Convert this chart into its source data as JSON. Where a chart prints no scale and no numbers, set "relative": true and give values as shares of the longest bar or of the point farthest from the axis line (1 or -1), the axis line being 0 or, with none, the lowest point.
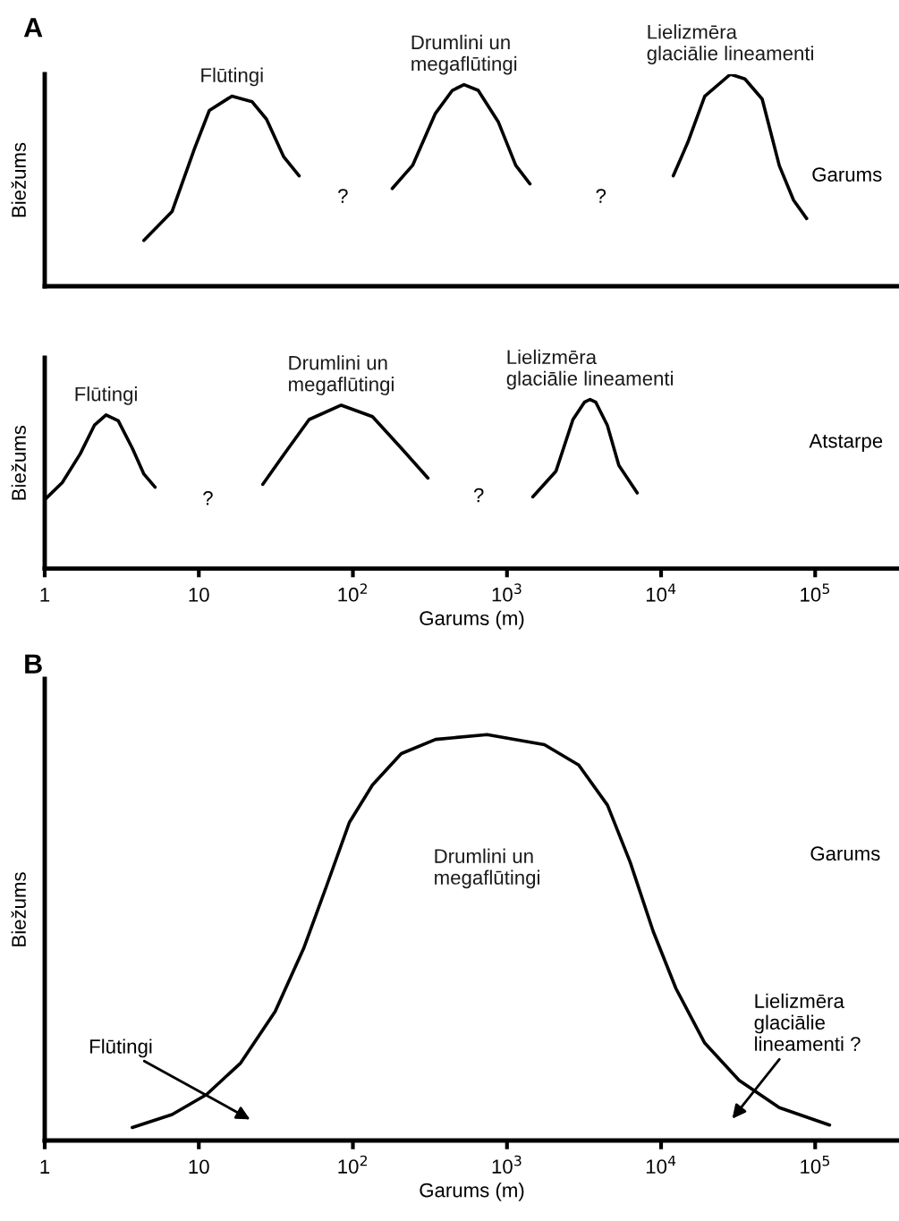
{
  "chart_data": [
    {
      "type": "line",
      "title": "A",
      "ylabel": "Biežums",
      "relative": true,
      "log": "x",
      "xlim": [
        1,
        350000
      ],
      "line_style": "solid",
      "series": [
        {
          "name": "Flūtingi",
          "color": "#000000",
          "x": [
            4.4,
            6.7,
            9.4,
            11.7,
            16.4,
            22.2,
            27.5,
            35.6,
            44.8
          ],
          "values": [
            0.216,
            0.352,
            0.651,
            0.829,
            0.897,
            0.87,
            0.788,
            0.61,
            0.521
          ]
        },
        {
          "name": "Drumlini un\nmegaflūtingi",
          "color": "#000000",
          "x": [
            180,
            244,
            343,
            442,
            526,
            650,
            880,
            1140,
            1410
          ],
          "values": [
            0.461,
            0.57,
            0.815,
            0.924,
            0.951,
            0.924,
            0.774,
            0.57,
            0.483
          ]
        },
        {
          "name": "Lielizmēra\nglaciālie lineamenti",
          "color": "#000000",
          "x": [
            12000,
            14900,
            19200,
            28200,
            35000,
            45300,
            58500,
            72400,
            88100
          ],
          "values": [
            0.521,
            0.678,
            0.896,
            1.0,
            0.978,
            0.883,
            0.569,
            0.406,
            0.319
          ]
        }
      ],
      "annotations": [
        "?",
        "?",
        "Garums"
      ]
    },
    {
      "type": "line",
      "xlabel": "Garums (m)",
      "ylabel": "Biežums",
      "relative": true,
      "log": "x",
      "xlim": [
        1,
        350000
      ],
      "line_style": "solid",
      "xticks": [
        1,
        10,
        {
          "value": 100,
          "label": "10$^{2}$"
        },
        {
          "value": 1000,
          "label": "10$^{3}$"
        },
        {
          "value": 10000,
          "label": "10$^{4}$"
        },
        {
          "value": 100000,
          "label": "10$^{5}$"
        }
      ],
      "series": [
        {
          "name": "Flūtingi",
          "color": "#000000",
          "x": [
            1.0,
            1.3,
            1.7,
            2.1,
            2.5,
            3.0,
            3.7,
            4.4,
            5.2
          ],
          "values": [
            0.407,
            0.508,
            0.678,
            0.847,
            0.908,
            0.874,
            0.712,
            0.559,
            0.481
          ]
        },
        {
          "name": "Drumlini un\nmegaflūtingi",
          "color": "#000000",
          "x": [
            26,
            37,
            52,
            84,
            134,
            206,
            307
          ],
          "values": [
            0.498,
            0.695,
            0.881,
            0.966,
            0.898,
            0.712,
            0.535
          ]
        },
        {
          "name": "Lielizmēra\nglaciālie lineamenti",
          "color": "#000000",
          "x": [
            1470,
            2080,
            2680,
            3180,
            3460,
            3770,
            4480,
            5320,
            7000
          ],
          "values": [
            0.424,
            0.576,
            0.881,
            0.983,
            1.0,
            0.983,
            0.847,
            0.61,
            0.447
          ]
        }
      ],
      "annotations": [
        "?",
        "?",
        "Atstarpe"
      ]
    },
    {
      "type": "line",
      "title": "B",
      "xlabel": "Garums (m)",
      "ylabel": "Biežums",
      "relative": true,
      "log": "x",
      "xlim": [
        1,
        350000
      ],
      "line_style": "solid",
      "xticks": [
        1,
        10,
        {
          "value": 100,
          "label": "10$^{2}$"
        },
        {
          "value": 1000,
          "label": "10$^{3}$"
        },
        {
          "value": 10000,
          "label": "10$^{4}$"
        },
        {
          "value": 100000,
          "label": "10$^{5}$"
        }
      ],
      "series": [
        {
          "name": "Drumlini un\nmegaflūtingi",
          "color": "#000000",
          "x": [
            3.7,
            6.7,
            11.2,
            18.7,
            31.3,
            47.9,
            67.6,
            95,
            134,
            206,
            344,
            743,
            1750,
            2920,
            4490,
            6310,
            8890,
            12500,
            19200,
            32100,
            58500,
            124000
          ],
          "values": [
            0.032,
            0.064,
            0.113,
            0.191,
            0.318,
            0.473,
            0.628,
            0.784,
            0.876,
            0.953,
            0.988,
            1.0,
            0.975,
            0.925,
            0.826,
            0.685,
            0.515,
            0.374,
            0.24,
            0.148,
            0.081,
            0.038
          ]
        }
      ],
      "annotations": [
        "Flūtingi",
        "Lielizmēra\nglaciālie\nlineamenti ?",
        "Garums"
      ]
    }
  ]
}
